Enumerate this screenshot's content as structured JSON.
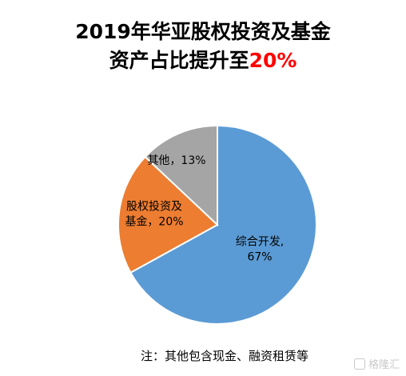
{
  "chart_data": {
    "type": "pie",
    "title_line1": "2019年华亚股权投资及基金",
    "title_line2_prefix": "资产占比提升至",
    "title_line2_highlight": "20%",
    "slices": [
      {
        "label_lines": [
          "综合开发,",
          "67%"
        ],
        "value": 67,
        "color": "#5b9bd5"
      },
      {
        "label_lines": [
          "股权投资及",
          "基金，20%"
        ],
        "value": 20,
        "color": "#ed7d31"
      },
      {
        "label_lines": [
          "其他，13%"
        ],
        "value": 13,
        "color": "#a5a5a5"
      }
    ],
    "note": "注：其他包含现金、融资租赁等",
    "legend": "none"
  },
  "watermark": {
    "text": "格隆汇",
    "logo_icon": "gelonghui-logo-icon"
  }
}
